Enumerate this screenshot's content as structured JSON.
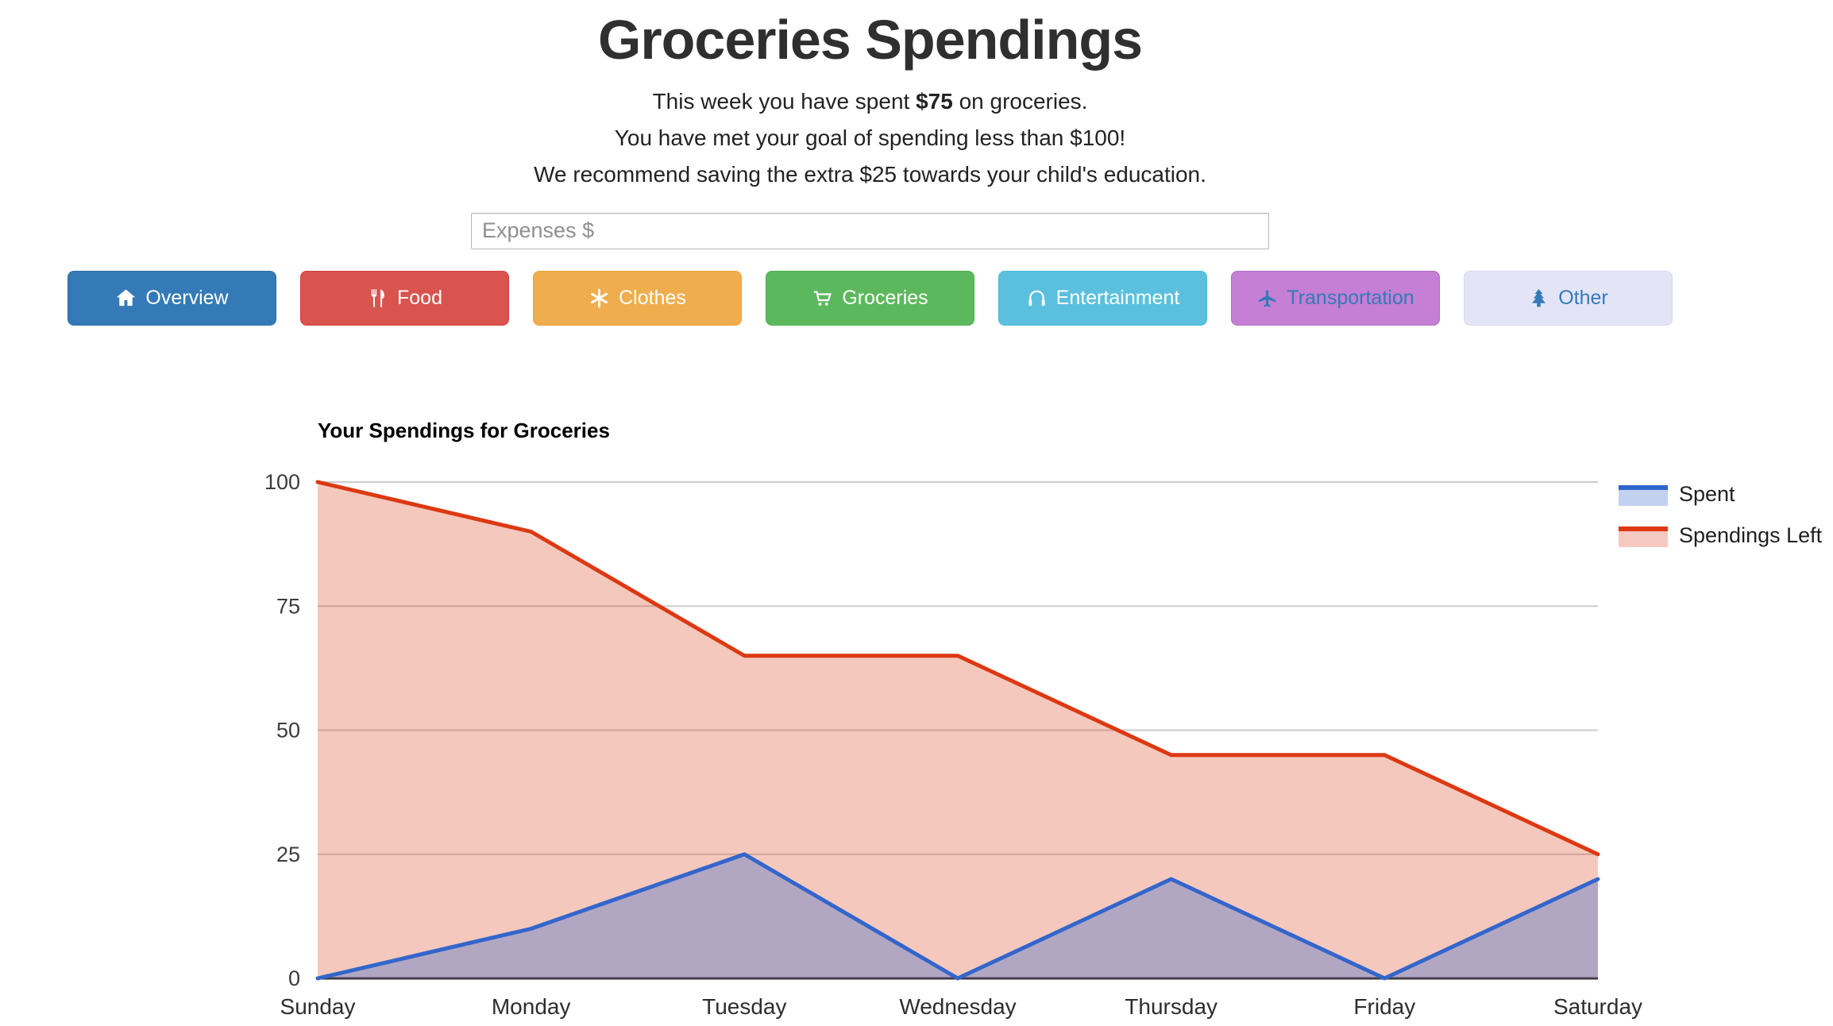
{
  "page": {
    "title": "Groceries Spendings",
    "summary": {
      "pre": "This week you have spent ",
      "amount": "$75",
      "post": " on groceries."
    },
    "goal_line": "You have met your goal of spending less than $100!",
    "recommend_line": "We recommend saving the extra $25 towards your child's education."
  },
  "expense_input": {
    "placeholder": "Expenses $",
    "value": ""
  },
  "nav_buttons": [
    {
      "label": "Overview",
      "icon": "home-icon",
      "bg": "#337ab7",
      "fg": "#ffffff",
      "border": "#2e6da4"
    },
    {
      "label": "Food",
      "icon": "cutlery-icon",
      "bg": "#d9534f",
      "fg": "#ffffff",
      "border": "#d43f3a"
    },
    {
      "label": "Clothes",
      "icon": "asterisk-icon",
      "bg": "#f0ad4e",
      "fg": "#ffffff",
      "border": "#eea236"
    },
    {
      "label": "Groceries",
      "icon": "cart-icon",
      "bg": "#5cb85c",
      "fg": "#ffffff",
      "border": "#4cae4c"
    },
    {
      "label": "Entertainment",
      "icon": "headphones-icon",
      "bg": "#5bc0de",
      "fg": "#ffffff",
      "border": "#46b8da"
    },
    {
      "label": "Transportation",
      "icon": "plane-icon",
      "bg": "#c57fd5",
      "fg": "#337ab7",
      "border": "#b06cc4"
    },
    {
      "label": "Other",
      "icon": "tree-icon",
      "bg": "#e4e4f7",
      "fg": "#337ab7",
      "border": "#d6d6ee"
    }
  ],
  "chart_data": {
    "type": "area",
    "title": "Your Spendings for Groceries",
    "categories": [
      "Sunday",
      "Monday",
      "Tuesday",
      "Wednesday",
      "Thursday",
      "Friday",
      "Saturday"
    ],
    "series": [
      {
        "name": "Spent",
        "color": "#3366cc",
        "fill": "rgba(51,102,204,0.34)",
        "legend_fill": "#c2d1f0",
        "values": [
          0,
          10,
          25,
          0,
          20,
          0,
          20
        ]
      },
      {
        "name": "Spendings Left",
        "color": "#dc3912",
        "fill": "rgba(220,57,18,0.28)",
        "legend_fill": "#f6c9c0",
        "values": [
          100,
          90,
          65,
          65,
          45,
          45,
          25
        ]
      }
    ],
    "xlabel": "",
    "ylabel": "",
    "ylim": [
      0,
      100
    ],
    "yticks": [
      0,
      25,
      50,
      75,
      100
    ],
    "grid": true,
    "legend_position": "right",
    "gridline_color": "#cccccc",
    "baseline_color": "#333333",
    "tick_label_color": "#3c3c3c"
  }
}
